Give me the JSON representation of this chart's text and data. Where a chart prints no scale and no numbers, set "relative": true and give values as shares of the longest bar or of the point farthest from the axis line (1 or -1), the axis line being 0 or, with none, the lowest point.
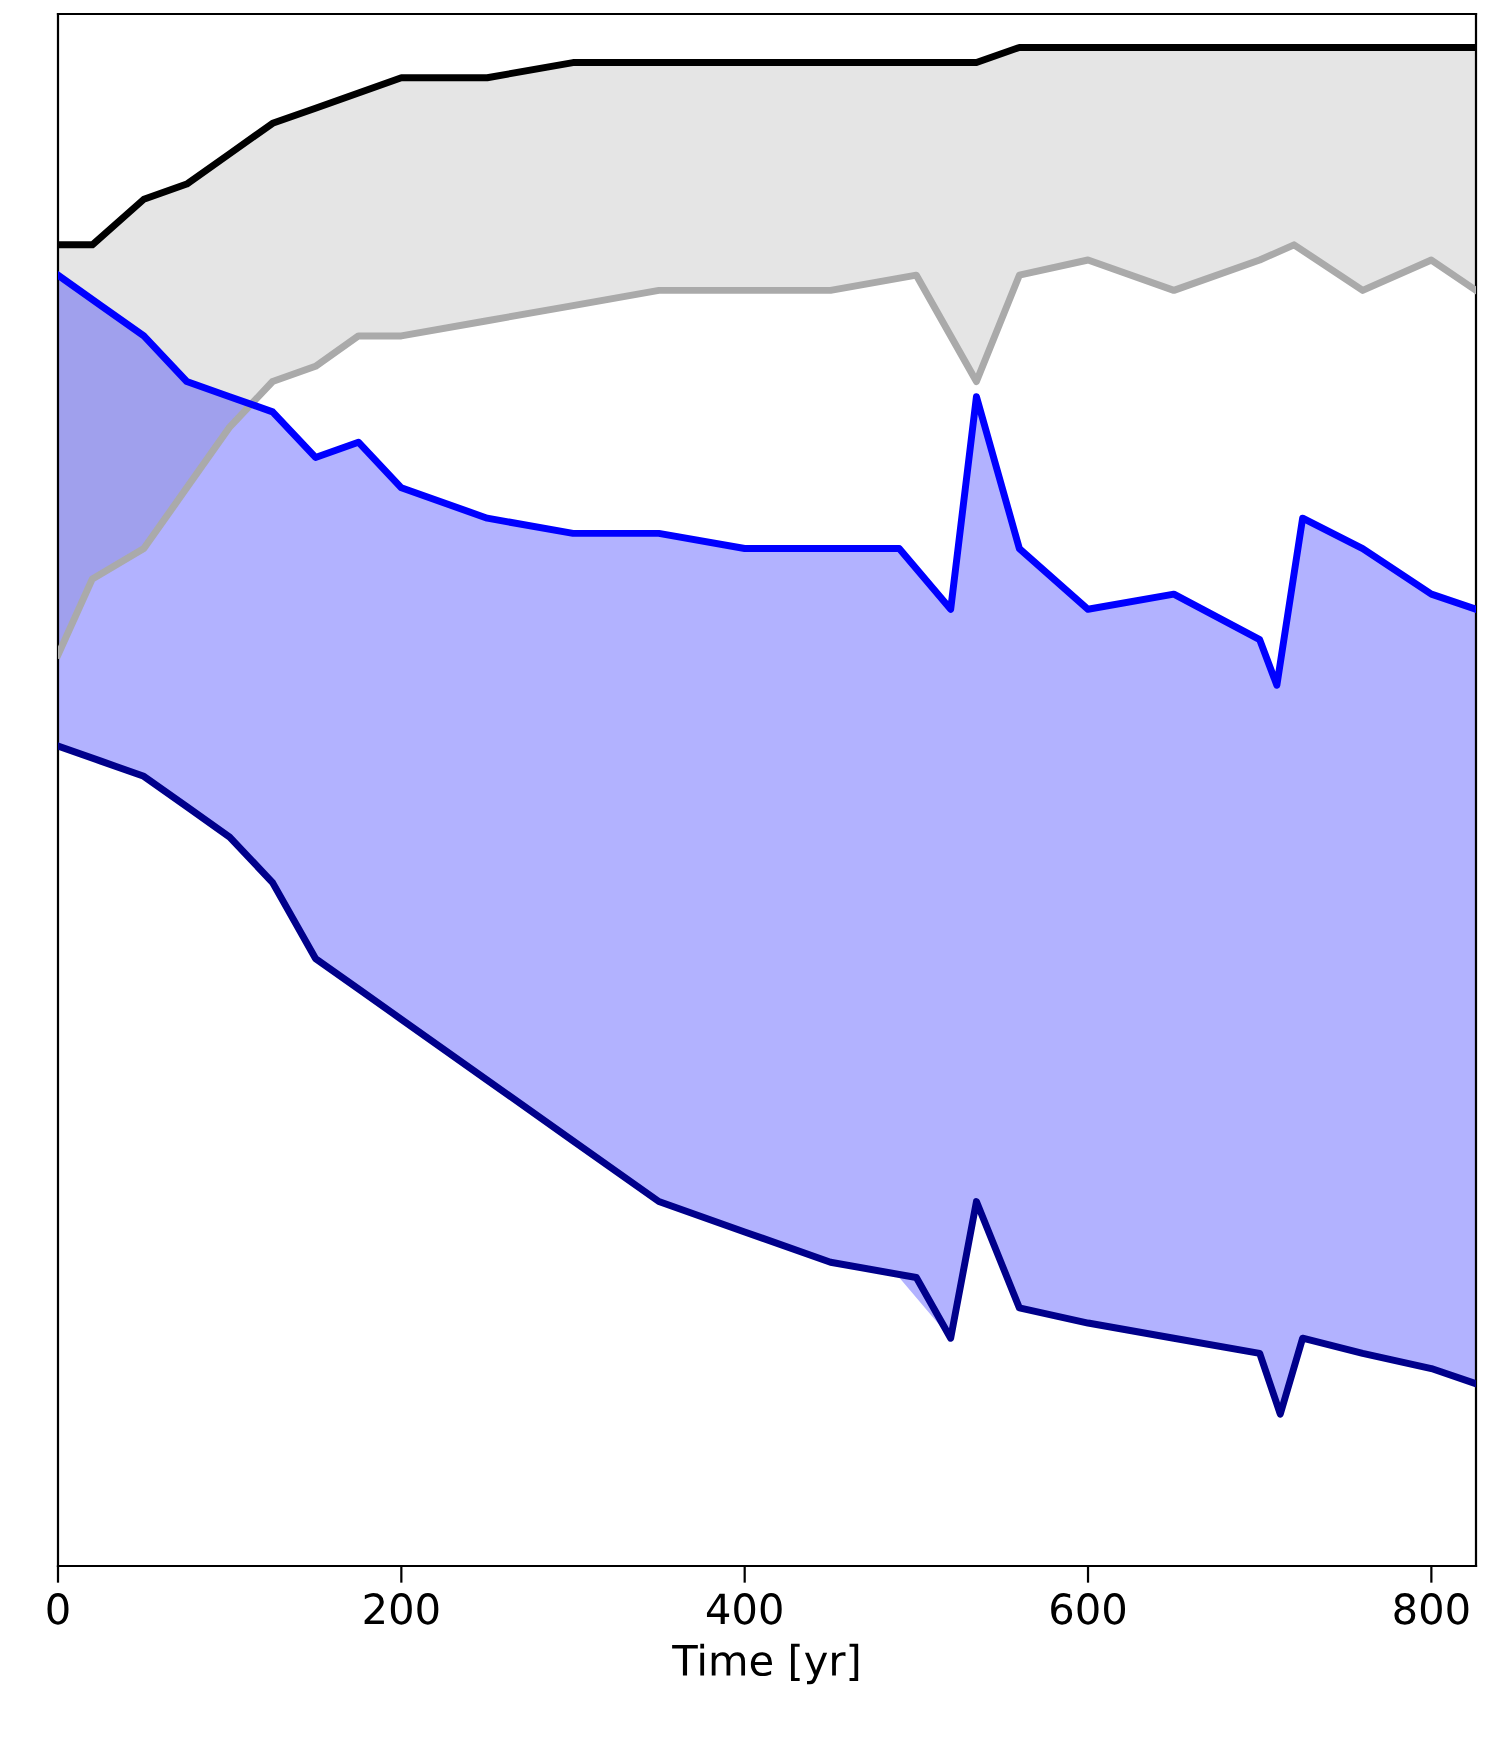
{
  "chart_data": {
    "type": "line",
    "relative": true,
    "xlabel": "Time [yr]",
    "xlim": [
      0,
      826
    ],
    "xticks": [
      0,
      200,
      400,
      600,
      800
    ],
    "grid": false,
    "legend": false,
    "series": [
      {
        "color": "#000000",
        "x": [
          0,
          20,
          50,
          75,
          100,
          125,
          150,
          175,
          200,
          250,
          300,
          350,
          400,
          450,
          500,
          535,
          560,
          600,
          650,
          700,
          720,
          760,
          800,
          826
        ],
        "values": [
          0.87,
          0.87,
          0.9,
          0.91,
          0.93,
          0.95,
          0.96,
          0.97,
          0.98,
          0.98,
          0.99,
          0.99,
          0.99,
          0.99,
          0.99,
          0.99,
          1.0,
          1.0,
          1.0,
          1.0,
          1.0,
          1.0,
          1.0,
          1.0
        ]
      },
      {
        "color": "#aaaaaa",
        "x": [
          0,
          20,
          50,
          75,
          100,
          125,
          150,
          175,
          200,
          250,
          300,
          350,
          400,
          450,
          500,
          535,
          560,
          600,
          650,
          700,
          720,
          760,
          800,
          826
        ],
        "values": [
          0.6,
          0.65,
          0.67,
          0.71,
          0.75,
          0.78,
          0.79,
          0.81,
          0.81,
          0.82,
          0.83,
          0.84,
          0.84,
          0.84,
          0.85,
          0.78,
          0.85,
          0.86,
          0.84,
          0.86,
          0.87,
          0.84,
          0.86,
          0.84
        ],
        "lower": [
          0.6,
          0.65,
          0.67,
          0.71,
          0.75,
          0.78,
          0.79,
          0.81,
          0.81,
          0.82,
          0.83,
          0.84,
          0.84,
          0.84,
          0.85,
          0.78,
          0.85,
          0.86,
          0.84,
          0.86,
          0.87,
          0.84,
          0.86,
          0.84
        ],
        "upper": [
          0.87,
          0.87,
          0.9,
          0.91,
          0.93,
          0.95,
          0.96,
          0.97,
          0.98,
          0.98,
          0.99,
          0.99,
          0.99,
          0.99,
          0.99,
          0.99,
          1.0,
          1.0,
          1.0,
          1.0,
          1.0,
          1.0,
          1.0,
          1.0
        ]
      },
      {
        "color": "#0000ff",
        "x": [
          0,
          25,
          50,
          75,
          100,
          125,
          150,
          175,
          200,
          250,
          300,
          350,
          400,
          450,
          490,
          520,
          535,
          560,
          600,
          650,
          700,
          710,
          725,
          760,
          800,
          826
        ],
        "values": [
          0.85,
          0.83,
          0.81,
          0.78,
          0.77,
          0.76,
          0.73,
          0.74,
          0.71,
          0.69,
          0.68,
          0.68,
          0.67,
          0.67,
          0.67,
          0.63,
          0.77,
          0.67,
          0.63,
          0.64,
          0.61,
          0.58,
          0.69,
          0.67,
          0.64,
          0.63
        ],
        "lower": [
          0.54,
          0.53,
          0.52,
          0.5,
          0.48,
          0.45,
          0.4,
          0.38,
          0.36,
          0.32,
          0.28,
          0.24,
          0.22,
          0.2,
          0.19,
          0.15,
          0.24,
          0.17,
          0.16,
          0.15,
          0.14,
          0.1,
          0.15,
          0.14,
          0.13,
          0.12
        ],
        "upper": [
          0.85,
          0.83,
          0.81,
          0.78,
          0.77,
          0.76,
          0.73,
          0.74,
          0.71,
          0.69,
          0.68,
          0.68,
          0.67,
          0.67,
          0.67,
          0.63,
          0.77,
          0.67,
          0.63,
          0.64,
          0.61,
          0.58,
          0.69,
          0.67,
          0.64,
          0.63
        ]
      },
      {
        "color": "#00008b",
        "x": [
          0,
          25,
          50,
          75,
          100,
          125,
          150,
          175,
          200,
          250,
          300,
          350,
          400,
          450,
          500,
          520,
          535,
          560,
          600,
          650,
          700,
          712,
          725,
          760,
          800,
          826
        ],
        "values": [
          0.54,
          0.53,
          0.52,
          0.5,
          0.48,
          0.45,
          0.4,
          0.38,
          0.36,
          0.32,
          0.28,
          0.24,
          0.22,
          0.2,
          0.19,
          0.15,
          0.24,
          0.17,
          0.16,
          0.15,
          0.14,
          0.1,
          0.15,
          0.14,
          0.13,
          0.12
        ]
      }
    ]
  }
}
